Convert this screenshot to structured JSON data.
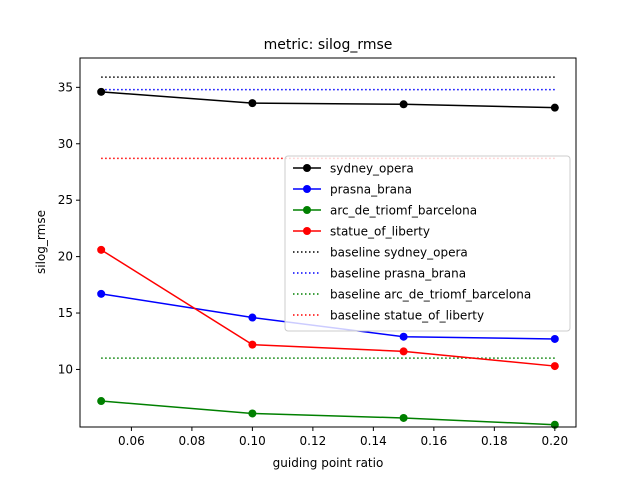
{
  "chart_data": {
    "type": "line",
    "title": "metric: silog_rmse",
    "xlabel": "guiding point ratio",
    "ylabel": "silog_rmse",
    "xlim": [
      0.043,
      0.207
    ],
    "ylim": [
      4.9,
      37.6
    ],
    "xticks": [
      0.06,
      0.08,
      0.1,
      0.12,
      0.14,
      0.16,
      0.18,
      0.2
    ],
    "xtick_labels": [
      "0.06",
      "0.08",
      "0.10",
      "0.12",
      "0.14",
      "0.16",
      "0.18",
      "0.20"
    ],
    "yticks": [
      10,
      15,
      20,
      25,
      30,
      35
    ],
    "ytick_labels": [
      "10",
      "15",
      "20",
      "25",
      "30",
      "35"
    ],
    "grid": false,
    "legend_position": "center-right",
    "x": [
      0.05,
      0.1,
      0.15,
      0.2
    ],
    "series": [
      {
        "name": "sydney_opera",
        "color": "#000000",
        "style": "solid-marker",
        "values": [
          34.6,
          33.6,
          33.5,
          33.2
        ]
      },
      {
        "name": "prasna_brana",
        "color": "#0000ff",
        "style": "solid-marker",
        "values": [
          16.7,
          14.6,
          12.9,
          12.7
        ]
      },
      {
        "name": "arc_de_triomf_barcelona",
        "color": "#008000",
        "style": "solid-marker",
        "values": [
          7.2,
          6.1,
          5.7,
          5.1
        ]
      },
      {
        "name": "statue_of_liberty",
        "color": "#ff0000",
        "style": "solid-marker",
        "values": [
          20.6,
          12.2,
          11.6,
          10.3
        ]
      }
    ],
    "baselines": [
      {
        "name": "baseline sydney_opera",
        "color": "#000000",
        "style": "dotted",
        "value": 35.9
      },
      {
        "name": "baseline prasna_brana",
        "color": "#0000ff",
        "style": "dotted",
        "value": 34.8
      },
      {
        "name": "baseline arc_de_triomf_barcelona",
        "color": "#008000",
        "style": "dotted",
        "value": 11.0
      },
      {
        "name": "baseline statue_of_liberty",
        "color": "#ff0000",
        "style": "dotted",
        "value": 28.7
      }
    ]
  }
}
